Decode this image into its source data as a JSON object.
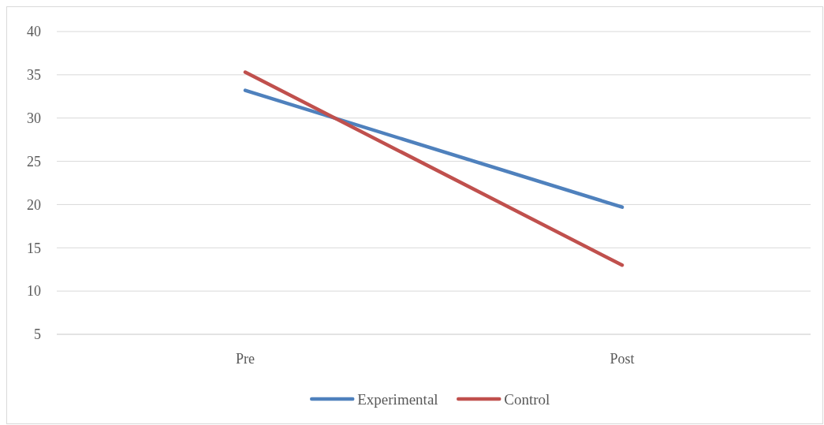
{
  "chart_data": {
    "type": "line",
    "categories": [
      "Pre",
      "Post"
    ],
    "series": [
      {
        "name": "Experimental",
        "color": "#4f81bd",
        "values": [
          33.2,
          19.7
        ]
      },
      {
        "name": "Control",
        "color": "#c0504d",
        "values": [
          35.3,
          13.0
        ]
      }
    ],
    "ylim": [
      5,
      40
    ],
    "yticks": [
      5,
      10,
      15,
      20,
      25,
      30,
      35,
      40
    ],
    "grid": "y",
    "legend": "bottom",
    "marker": "none",
    "line_style": "solid"
  }
}
